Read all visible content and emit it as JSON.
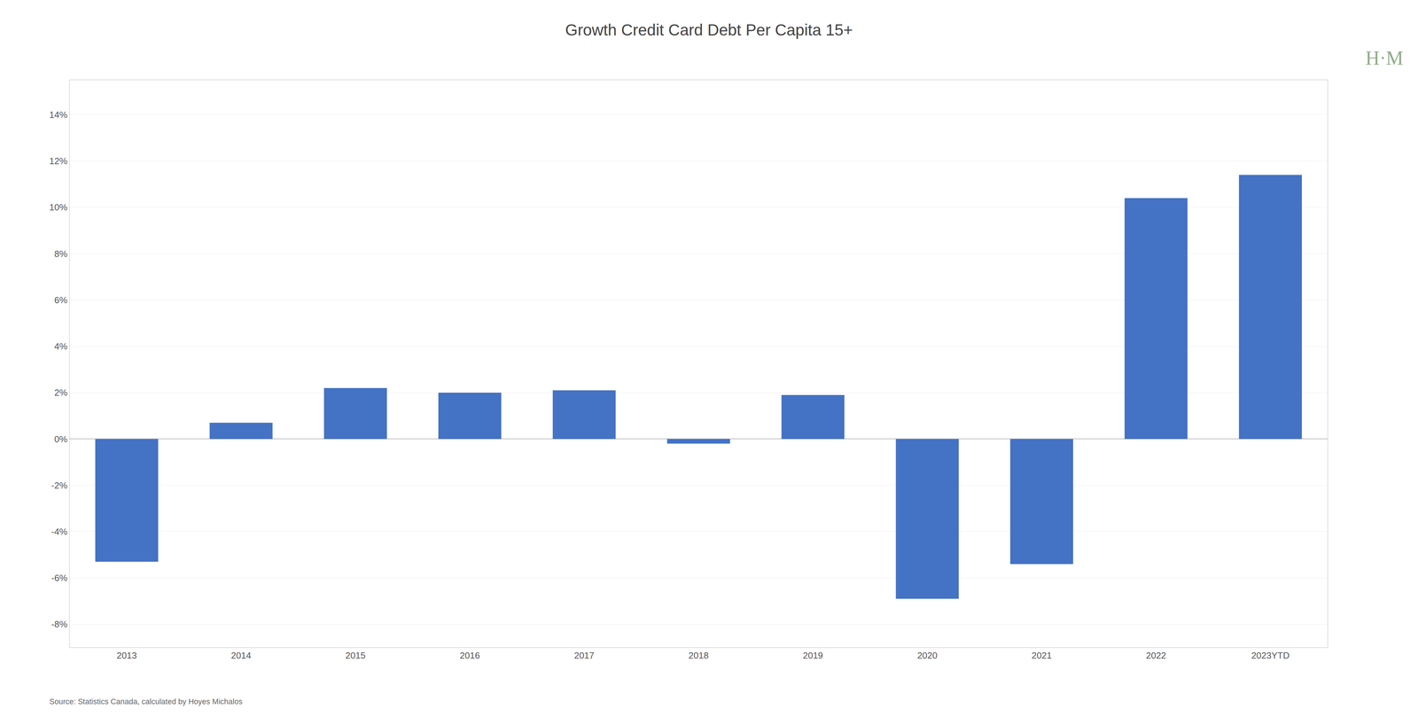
{
  "chart_data": {
    "type": "bar",
    "title": "Growth Credit Card Debt Per Capita 15+",
    "categories": [
      "2013",
      "2014",
      "2015",
      "2016",
      "2017",
      "2018",
      "2019",
      "2020",
      "2021",
      "2022",
      "2023YTD"
    ],
    "values": [
      -0.053,
      0.007,
      0.022,
      0.02,
      0.021,
      -0.002,
      0.019,
      -0.069,
      -0.054,
      0.104,
      0.114
    ],
    "color": "#4472C4",
    "ylim": [
      -0.09,
      0.155
    ],
    "yticks": [
      {
        "value": -0.08,
        "label": "-8%"
      },
      {
        "value": -0.06,
        "label": "-6%"
      },
      {
        "value": -0.04,
        "label": "-4%"
      },
      {
        "value": -0.02,
        "label": "-2%"
      },
      {
        "value": 0.0,
        "label": "0%"
      },
      {
        "value": 0.02,
        "label": "2%"
      },
      {
        "value": 0.04,
        "label": "4%"
      },
      {
        "value": 0.06,
        "label": "6%"
      },
      {
        "value": 0.08,
        "label": "8%"
      },
      {
        "value": 0.1,
        "label": "10%"
      },
      {
        "value": 0.12,
        "label": "12%"
      },
      {
        "value": 0.14,
        "label": "14%"
      }
    ],
    "grid": true,
    "annotations": [
      {
        "text": "Source: Statistics Canada, calculated by Hoyes Michalos",
        "color": "#666666"
      },
      {
        "text": "H·M",
        "color": "#8fad88"
      }
    ]
  }
}
